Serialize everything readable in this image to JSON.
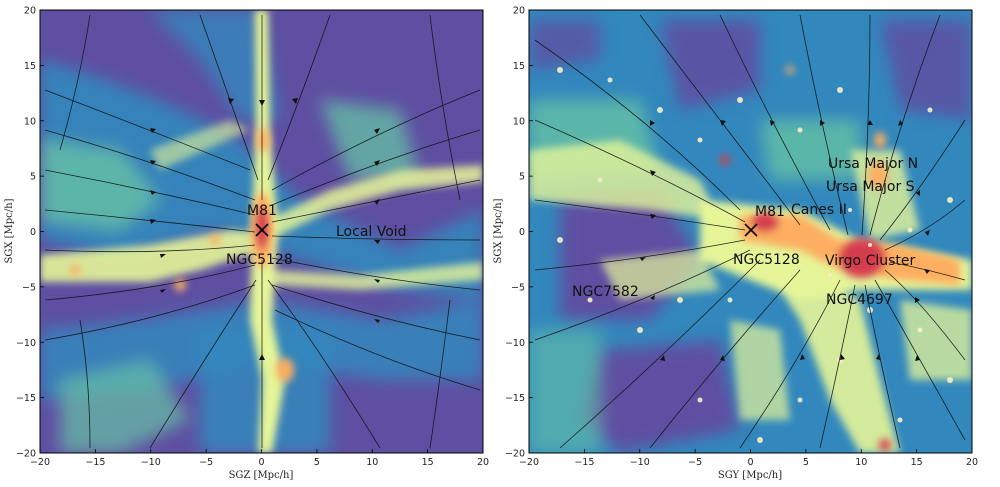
{
  "panels": [
    {
      "id": "left",
      "xlabel": "SGZ [Mpc/h]",
      "ylabel": "SGX [Mpc/h]",
      "xticks": [
        "−20",
        "−15",
        "−10",
        "−5",
        "0",
        "5",
        "10",
        "15",
        "20"
      ],
      "yticks": [
        "20",
        "15",
        "10",
        "5",
        "0",
        "−5",
        "−10",
        "−15",
        "−20"
      ],
      "annotations": [
        "M81",
        "NGC5128",
        "Local Void"
      ]
    },
    {
      "id": "right",
      "xlabel": "SGY [Mpc/h]",
      "ylabel": "SGX [Mpc/h]",
      "xticks": [
        "−20",
        "−15",
        "−10",
        "−5",
        "0",
        "5",
        "10",
        "15",
        "20"
      ],
      "yticks": [
        "20",
        "15",
        "10",
        "5",
        "0",
        "−5",
        "−10",
        "−15",
        "−20"
      ],
      "annotations": [
        "M81",
        "Canes II",
        "NGC5128",
        "Virgo Cluster",
        "NGC4697",
        "NGC7582",
        "Ursa Major N",
        "Ursa Major S"
      ]
    }
  ],
  "colors": {
    "void": "#5e4fa2",
    "low": "#3288bd",
    "mid": "#66c2a5",
    "filament": "#e6f598",
    "high": "#fdae61",
    "peak": "#d53e4f"
  }
}
